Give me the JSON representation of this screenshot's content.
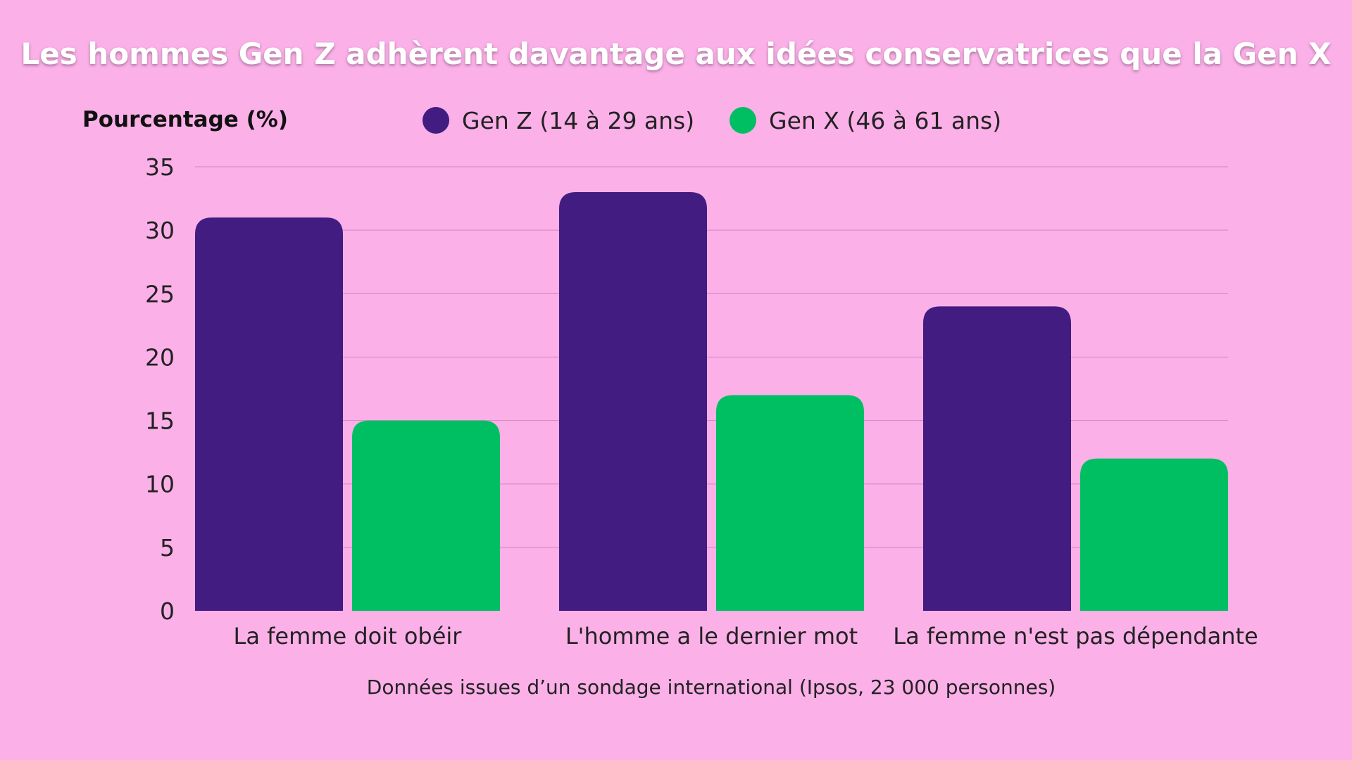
{
  "colors": {
    "background": "#fbb0e8",
    "gen_z": "#421c80",
    "gen_x": "#00bf62",
    "grid": "#d98cc8"
  },
  "footnote": "Données issues d’un sondage international (Ipsos, 23 000 personnes)",
  "chart_data": {
    "type": "bar",
    "title": "Les hommes Gen Z adhèrent davantage aux idées conservatrices que la Gen X",
    "ylabel": "Pourcentage (%)",
    "xlabel": "",
    "categories": [
      "La femme doit obéir",
      "L'homme a le dernier mot",
      "La femme n'est pas dépendante"
    ],
    "series": [
      {
        "name": "Gen Z (14 à 29 ans)",
        "values": [
          31,
          33,
          24
        ],
        "color": "#421c80"
      },
      {
        "name": "Gen X (46 à 61 ans)",
        "values": [
          15,
          17,
          12
        ],
        "color": "#00bf62"
      }
    ],
    "ylim": [
      0,
      35
    ],
    "yticks": [
      0,
      5,
      10,
      15,
      20,
      25,
      30,
      35
    ],
    "grid": true,
    "legend_position": "top"
  }
}
